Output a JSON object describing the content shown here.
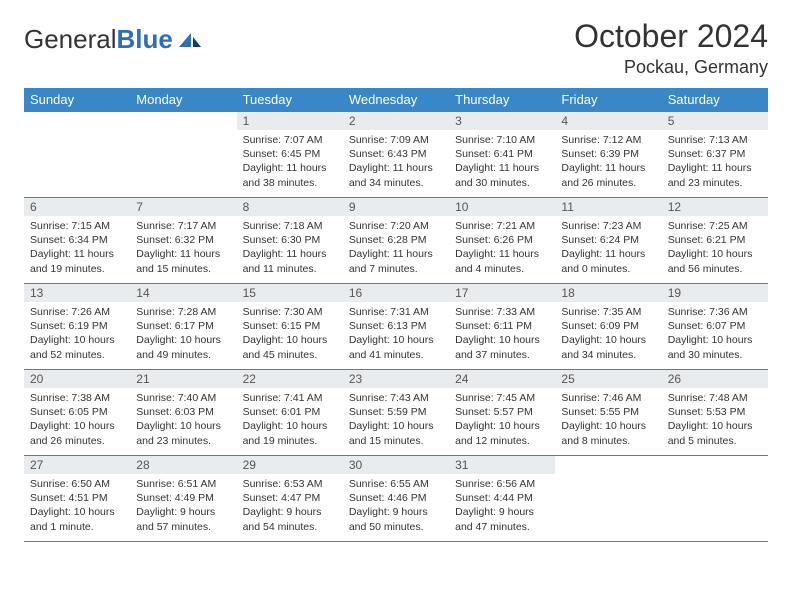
{
  "logo": {
    "word1": "General",
    "word2": "Blue"
  },
  "title": "October 2024",
  "location": "Pockau, Germany",
  "colors": {
    "header_bg": "#3a87c7",
    "header_text": "#ffffff",
    "rule": "#3a87c7",
    "daynum_bg": "#e8ecef",
    "daynum_text": "#555555",
    "body_text": "#333333",
    "logo_blue": "#2d6fb8",
    "background": "#ffffff"
  },
  "weekdays": [
    "Sunday",
    "Monday",
    "Tuesday",
    "Wednesday",
    "Thursday",
    "Friday",
    "Saturday"
  ],
  "weeks": [
    [
      null,
      null,
      {
        "n": "1",
        "sr": "Sunrise: 7:07 AM",
        "ss": "Sunset: 6:45 PM",
        "dl": "Daylight: 11 hours and 38 minutes."
      },
      {
        "n": "2",
        "sr": "Sunrise: 7:09 AM",
        "ss": "Sunset: 6:43 PM",
        "dl": "Daylight: 11 hours and 34 minutes."
      },
      {
        "n": "3",
        "sr": "Sunrise: 7:10 AM",
        "ss": "Sunset: 6:41 PM",
        "dl": "Daylight: 11 hours and 30 minutes."
      },
      {
        "n": "4",
        "sr": "Sunrise: 7:12 AM",
        "ss": "Sunset: 6:39 PM",
        "dl": "Daylight: 11 hours and 26 minutes."
      },
      {
        "n": "5",
        "sr": "Sunrise: 7:13 AM",
        "ss": "Sunset: 6:37 PM",
        "dl": "Daylight: 11 hours and 23 minutes."
      }
    ],
    [
      {
        "n": "6",
        "sr": "Sunrise: 7:15 AM",
        "ss": "Sunset: 6:34 PM",
        "dl": "Daylight: 11 hours and 19 minutes."
      },
      {
        "n": "7",
        "sr": "Sunrise: 7:17 AM",
        "ss": "Sunset: 6:32 PM",
        "dl": "Daylight: 11 hours and 15 minutes."
      },
      {
        "n": "8",
        "sr": "Sunrise: 7:18 AM",
        "ss": "Sunset: 6:30 PM",
        "dl": "Daylight: 11 hours and 11 minutes."
      },
      {
        "n": "9",
        "sr": "Sunrise: 7:20 AM",
        "ss": "Sunset: 6:28 PM",
        "dl": "Daylight: 11 hours and 7 minutes."
      },
      {
        "n": "10",
        "sr": "Sunrise: 7:21 AM",
        "ss": "Sunset: 6:26 PM",
        "dl": "Daylight: 11 hours and 4 minutes."
      },
      {
        "n": "11",
        "sr": "Sunrise: 7:23 AM",
        "ss": "Sunset: 6:24 PM",
        "dl": "Daylight: 11 hours and 0 minutes."
      },
      {
        "n": "12",
        "sr": "Sunrise: 7:25 AM",
        "ss": "Sunset: 6:21 PM",
        "dl": "Daylight: 10 hours and 56 minutes."
      }
    ],
    [
      {
        "n": "13",
        "sr": "Sunrise: 7:26 AM",
        "ss": "Sunset: 6:19 PM",
        "dl": "Daylight: 10 hours and 52 minutes."
      },
      {
        "n": "14",
        "sr": "Sunrise: 7:28 AM",
        "ss": "Sunset: 6:17 PM",
        "dl": "Daylight: 10 hours and 49 minutes."
      },
      {
        "n": "15",
        "sr": "Sunrise: 7:30 AM",
        "ss": "Sunset: 6:15 PM",
        "dl": "Daylight: 10 hours and 45 minutes."
      },
      {
        "n": "16",
        "sr": "Sunrise: 7:31 AM",
        "ss": "Sunset: 6:13 PM",
        "dl": "Daylight: 10 hours and 41 minutes."
      },
      {
        "n": "17",
        "sr": "Sunrise: 7:33 AM",
        "ss": "Sunset: 6:11 PM",
        "dl": "Daylight: 10 hours and 37 minutes."
      },
      {
        "n": "18",
        "sr": "Sunrise: 7:35 AM",
        "ss": "Sunset: 6:09 PM",
        "dl": "Daylight: 10 hours and 34 minutes."
      },
      {
        "n": "19",
        "sr": "Sunrise: 7:36 AM",
        "ss": "Sunset: 6:07 PM",
        "dl": "Daylight: 10 hours and 30 minutes."
      }
    ],
    [
      {
        "n": "20",
        "sr": "Sunrise: 7:38 AM",
        "ss": "Sunset: 6:05 PM",
        "dl": "Daylight: 10 hours and 26 minutes."
      },
      {
        "n": "21",
        "sr": "Sunrise: 7:40 AM",
        "ss": "Sunset: 6:03 PM",
        "dl": "Daylight: 10 hours and 23 minutes."
      },
      {
        "n": "22",
        "sr": "Sunrise: 7:41 AM",
        "ss": "Sunset: 6:01 PM",
        "dl": "Daylight: 10 hours and 19 minutes."
      },
      {
        "n": "23",
        "sr": "Sunrise: 7:43 AM",
        "ss": "Sunset: 5:59 PM",
        "dl": "Daylight: 10 hours and 15 minutes."
      },
      {
        "n": "24",
        "sr": "Sunrise: 7:45 AM",
        "ss": "Sunset: 5:57 PM",
        "dl": "Daylight: 10 hours and 12 minutes."
      },
      {
        "n": "25",
        "sr": "Sunrise: 7:46 AM",
        "ss": "Sunset: 5:55 PM",
        "dl": "Daylight: 10 hours and 8 minutes."
      },
      {
        "n": "26",
        "sr": "Sunrise: 7:48 AM",
        "ss": "Sunset: 5:53 PM",
        "dl": "Daylight: 10 hours and 5 minutes."
      }
    ],
    [
      {
        "n": "27",
        "sr": "Sunrise: 6:50 AM",
        "ss": "Sunset: 4:51 PM",
        "dl": "Daylight: 10 hours and 1 minute."
      },
      {
        "n": "28",
        "sr": "Sunrise: 6:51 AM",
        "ss": "Sunset: 4:49 PM",
        "dl": "Daylight: 9 hours and 57 minutes."
      },
      {
        "n": "29",
        "sr": "Sunrise: 6:53 AM",
        "ss": "Sunset: 4:47 PM",
        "dl": "Daylight: 9 hours and 54 minutes."
      },
      {
        "n": "30",
        "sr": "Sunrise: 6:55 AM",
        "ss": "Sunset: 4:46 PM",
        "dl": "Daylight: 9 hours and 50 minutes."
      },
      {
        "n": "31",
        "sr": "Sunrise: 6:56 AM",
        "ss": "Sunset: 4:44 PM",
        "dl": "Daylight: 9 hours and 47 minutes."
      },
      null,
      null
    ]
  ]
}
